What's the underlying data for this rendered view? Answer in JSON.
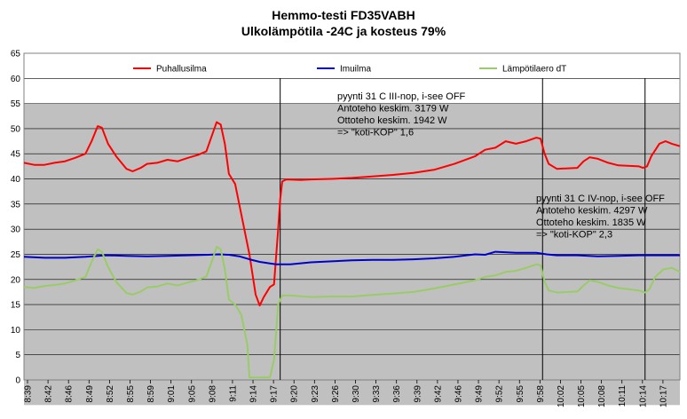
{
  "chart_data": {
    "type": "line",
    "title": "Hemmo-testi FD35VABH",
    "subtitle": "Ulkolämpötila -24C ja kosteus 79%",
    "xlabel": "",
    "ylabel": "",
    "ylim": [
      0,
      65
    ],
    "y_ticks": [
      0,
      5,
      10,
      15,
      20,
      25,
      30,
      35,
      40,
      45,
      50,
      55,
      60,
      65
    ],
    "x_ticks": [
      "8:39",
      "8:42",
      "8:46",
      "8:49",
      "8:52",
      "8:55",
      "8:59",
      "9:01",
      "9:05",
      "9:08",
      "9:11",
      "9:14",
      "9:17",
      "9:20",
      "9:23",
      "9:26",
      "9:30",
      "9:33",
      "9:36",
      "9:39",
      "9:42",
      "9:46",
      "9:49",
      "9:52",
      "9:55",
      "9:58",
      "10:02",
      "10:05",
      "10:08",
      "10:11",
      "10:14",
      "10:17"
    ],
    "plot_area_color": "#c0c0c0",
    "upper_area_color": "#ffffff",
    "grid": true,
    "legend_position": "top",
    "series": [
      {
        "name": "Puhallusilma",
        "color": "#ff0000",
        "points": [
          [
            0,
            43.2
          ],
          [
            0.5,
            42.8
          ],
          [
            1,
            42.8
          ],
          [
            1.5,
            43.2
          ],
          [
            2,
            43.5
          ],
          [
            2.5,
            44.2
          ],
          [
            3,
            45.0
          ],
          [
            3.3,
            47.5
          ],
          [
            3.6,
            50.5
          ],
          [
            3.8,
            50.2
          ],
          [
            4.1,
            47.0
          ],
          [
            4.5,
            44.5
          ],
          [
            5,
            42.0
          ],
          [
            5.3,
            41.5
          ],
          [
            5.7,
            42.2
          ],
          [
            6,
            43.0
          ],
          [
            6.5,
            43.2
          ],
          [
            7,
            43.8
          ],
          [
            7.5,
            43.5
          ],
          [
            8,
            44.2
          ],
          [
            8.5,
            44.8
          ],
          [
            8.9,
            45.5
          ],
          [
            9.2,
            49.0
          ],
          [
            9.4,
            51.3
          ],
          [
            9.6,
            50.8
          ],
          [
            9.8,
            47.0
          ],
          [
            10,
            41.0
          ],
          [
            10.3,
            39.0
          ],
          [
            10.6,
            33.0
          ],
          [
            11,
            25.0
          ],
          [
            11.3,
            17.0
          ],
          [
            11.5,
            14.8
          ],
          [
            11.7,
            16.5
          ],
          [
            12,
            18.5
          ],
          [
            12.2,
            19.0
          ],
          [
            12.4,
            30.0
          ],
          [
            12.5,
            36.0
          ],
          [
            12.6,
            39.5
          ],
          [
            12.8,
            39.9
          ],
          [
            13.5,
            39.8
          ],
          [
            14,
            39.9
          ],
          [
            15,
            40.0
          ],
          [
            16,
            40.2
          ],
          [
            17,
            40.5
          ],
          [
            18,
            40.8
          ],
          [
            19,
            41.2
          ],
          [
            20,
            41.8
          ],
          [
            21,
            43.0
          ],
          [
            22,
            44.5
          ],
          [
            22.5,
            45.8
          ],
          [
            23,
            46.2
          ],
          [
            23.5,
            47.5
          ],
          [
            24,
            47.0
          ],
          [
            24.5,
            47.5
          ],
          [
            25,
            48.2
          ],
          [
            25.2,
            48.0
          ],
          [
            25.4,
            45.0
          ],
          [
            25.6,
            43.0
          ],
          [
            26,
            42.0
          ],
          [
            27,
            42.2
          ],
          [
            27.3,
            43.5
          ],
          [
            27.6,
            44.3
          ],
          [
            28,
            44.0
          ],
          [
            28.5,
            43.2
          ],
          [
            29,
            42.7
          ],
          [
            30,
            42.5
          ],
          [
            30.2,
            42.2
          ],
          [
            30.4,
            42.5
          ],
          [
            30.6,
            44.5
          ],
          [
            31,
            47.0
          ],
          [
            31.3,
            47.5
          ],
          [
            31.6,
            47.0
          ],
          [
            32,
            46.5
          ]
        ]
      },
      {
        "name": "Imuilma",
        "color": "#0000cc",
        "points": [
          [
            0,
            24.5
          ],
          [
            1,
            24.3
          ],
          [
            2,
            24.3
          ],
          [
            3,
            24.5
          ],
          [
            4,
            24.8
          ],
          [
            5,
            24.7
          ],
          [
            6,
            24.6
          ],
          [
            7,
            24.7
          ],
          [
            8,
            24.8
          ],
          [
            9,
            24.9
          ],
          [
            9.5,
            25.0
          ],
          [
            10,
            24.9
          ],
          [
            10.5,
            24.6
          ],
          [
            11,
            24.0
          ],
          [
            11.5,
            23.5
          ],
          [
            12,
            23.2
          ],
          [
            12.3,
            23.0
          ],
          [
            13,
            23.0
          ],
          [
            14,
            23.4
          ],
          [
            15,
            23.6
          ],
          [
            16,
            23.8
          ],
          [
            17,
            23.9
          ],
          [
            18,
            23.9
          ],
          [
            19,
            24.0
          ],
          [
            20,
            24.2
          ],
          [
            21,
            24.5
          ],
          [
            22,
            25.0
          ],
          [
            22.5,
            24.9
          ],
          [
            23,
            25.5
          ],
          [
            24,
            25.3
          ],
          [
            25,
            25.3
          ],
          [
            25.5,
            25.0
          ],
          [
            26,
            24.8
          ],
          [
            27,
            24.8
          ],
          [
            28,
            24.6
          ],
          [
            29,
            24.7
          ],
          [
            30,
            24.8
          ],
          [
            31,
            24.8
          ],
          [
            32,
            24.8
          ]
        ]
      },
      {
        "name": "Lämpötilaero dT",
        "color": "#99cc66",
        "points": [
          [
            0,
            18.5
          ],
          [
            0.5,
            18.3
          ],
          [
            1,
            18.7
          ],
          [
            1.5,
            18.9
          ],
          [
            2,
            19.2
          ],
          [
            2.5,
            19.8
          ],
          [
            3,
            20.5
          ],
          [
            3.3,
            23.5
          ],
          [
            3.6,
            26.0
          ],
          [
            3.8,
            25.5
          ],
          [
            4.1,
            22.5
          ],
          [
            4.5,
            19.5
          ],
          [
            5,
            17.3
          ],
          [
            5.3,
            17.0
          ],
          [
            5.7,
            17.6
          ],
          [
            6,
            18.4
          ],
          [
            6.5,
            18.6
          ],
          [
            7,
            19.2
          ],
          [
            7.5,
            18.8
          ],
          [
            8,
            19.4
          ],
          [
            8.5,
            19.9
          ],
          [
            8.9,
            20.6
          ],
          [
            9.2,
            24.0
          ],
          [
            9.4,
            26.5
          ],
          [
            9.6,
            26.0
          ],
          [
            9.8,
            22.0
          ],
          [
            10,
            16.0
          ],
          [
            10.3,
            15.0
          ],
          [
            10.6,
            13.0
          ],
          [
            10.9,
            7.0
          ],
          [
            11,
            0.5
          ],
          [
            11.5,
            0.5
          ],
          [
            12,
            0.5
          ],
          [
            12.2,
            4.0
          ],
          [
            12.4,
            15.0
          ],
          [
            12.6,
            16.8
          ],
          [
            13,
            16.8
          ],
          [
            14,
            16.5
          ],
          [
            15,
            16.6
          ],
          [
            16,
            16.6
          ],
          [
            17,
            16.9
          ],
          [
            18,
            17.2
          ],
          [
            19,
            17.5
          ],
          [
            20,
            18.2
          ],
          [
            21,
            19.0
          ],
          [
            22,
            19.8
          ],
          [
            22.5,
            20.5
          ],
          [
            23,
            20.8
          ],
          [
            23.5,
            21.5
          ],
          [
            24,
            21.7
          ],
          [
            24.5,
            22.3
          ],
          [
            25,
            23.0
          ],
          [
            25.2,
            22.8
          ],
          [
            25.4,
            19.5
          ],
          [
            25.6,
            17.8
          ],
          [
            26,
            17.4
          ],
          [
            27,
            17.6
          ],
          [
            27.3,
            18.8
          ],
          [
            27.6,
            19.8
          ],
          [
            28,
            19.5
          ],
          [
            28.5,
            18.8
          ],
          [
            29,
            18.3
          ],
          [
            30,
            17.8
          ],
          [
            30.3,
            17.4
          ],
          [
            30.5,
            18.0
          ],
          [
            30.8,
            20.5
          ],
          [
            31.2,
            22.0
          ],
          [
            31.6,
            22.3
          ],
          [
            32,
            21.5
          ]
        ]
      }
    ],
    "vertical_markers": [
      12.5,
      25.3,
      30.3
    ],
    "annotations": [
      {
        "lines": [
          "pyynti 31 C III-nop, i-see OFF",
          "Antoteho keskim. 3179 W",
          "Ottoteho keskim. 1942 W",
          "=> \"koti-KOP\" 1,6"
        ]
      },
      {
        "lines": [
          "pyynti 31 C IV-nop, i-see OFF",
          "Antoteho keskim. 4297 W",
          "Ottoteho keskim. 1835 W",
          "=> \"koti-KOP\" 2,3"
        ]
      }
    ]
  }
}
